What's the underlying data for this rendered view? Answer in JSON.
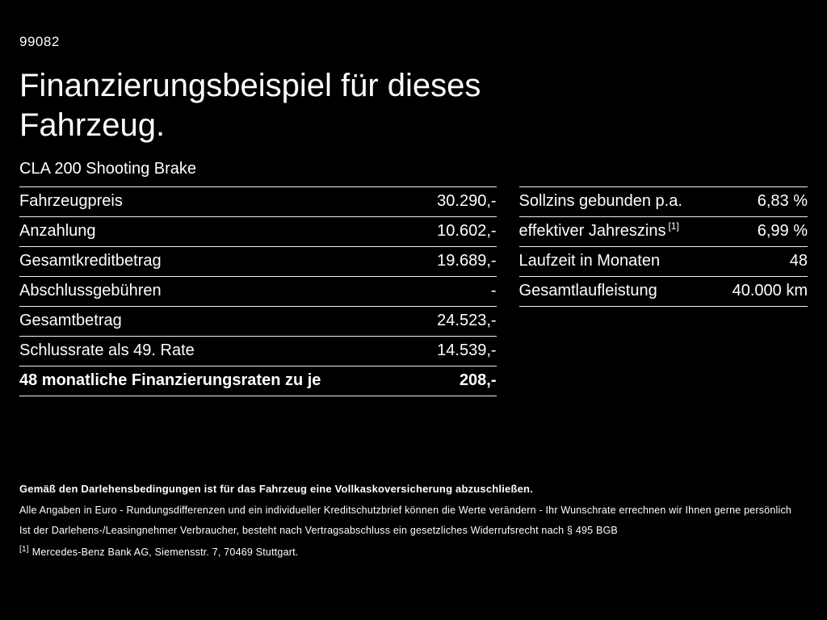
{
  "page_number": "99082",
  "title": "Finanzierungsbeispiel für dieses Fahrzeug.",
  "vehicle": "CLA 200 Shooting Brake",
  "left_table": {
    "rows": [
      {
        "label": "Fahrzeugpreis",
        "value": "30.290,-"
      },
      {
        "label": "Anzahlung",
        "value": "10.602,-"
      },
      {
        "label": "Gesamtkreditbetrag",
        "value": "19.689,-"
      },
      {
        "label": "Abschlussgebühren",
        "value": "-"
      },
      {
        "label": "Gesamtbetrag",
        "value": "24.523,-"
      },
      {
        "label": "Schlussrate als 49. Rate",
        "value": "14.539,-"
      },
      {
        "label": "48 monatliche Finanzierungsraten zu je",
        "value": "208,-"
      }
    ]
  },
  "right_table": {
    "rows": [
      {
        "label": "Sollzins gebunden p.a.",
        "sup": "",
        "value": "6,83 %"
      },
      {
        "label": "effektiver Jahreszins",
        "sup": "[1]",
        "value": "6,99 %"
      },
      {
        "label": "Laufzeit in Monaten",
        "sup": "",
        "value": "48"
      },
      {
        "label": "Gesamtlaufleistung",
        "sup": "",
        "value": "40.000 km"
      }
    ]
  },
  "footnotes": {
    "insurance_note": "Gemäß den Darlehensbedingungen ist für das Fahrzeug eine Vollkaskoversicherung abzuschließen.",
    "euro_note": "Alle Angaben in Euro - Rundungsdifferenzen und ein individueller Kreditschutzbrief können die Werte verändern - Ihr Wunschrate errechnen wir Ihnen gerne persönlich",
    "withdrawal_note": "Ist der Darlehens-/Leasingnehmer Verbraucher, besteht nach Vertragsabschluss ein gesetzliches Widerrufsrecht nach § 495 BGB",
    "footnote_ref": "[1]",
    "bank_note": "Mercedes-Benz Bank AG, Siemensstr. 7, 70469 Stuttgart."
  },
  "colors": {
    "background": "#000000",
    "text": "#ffffff",
    "divider": "#f0f0f0"
  }
}
